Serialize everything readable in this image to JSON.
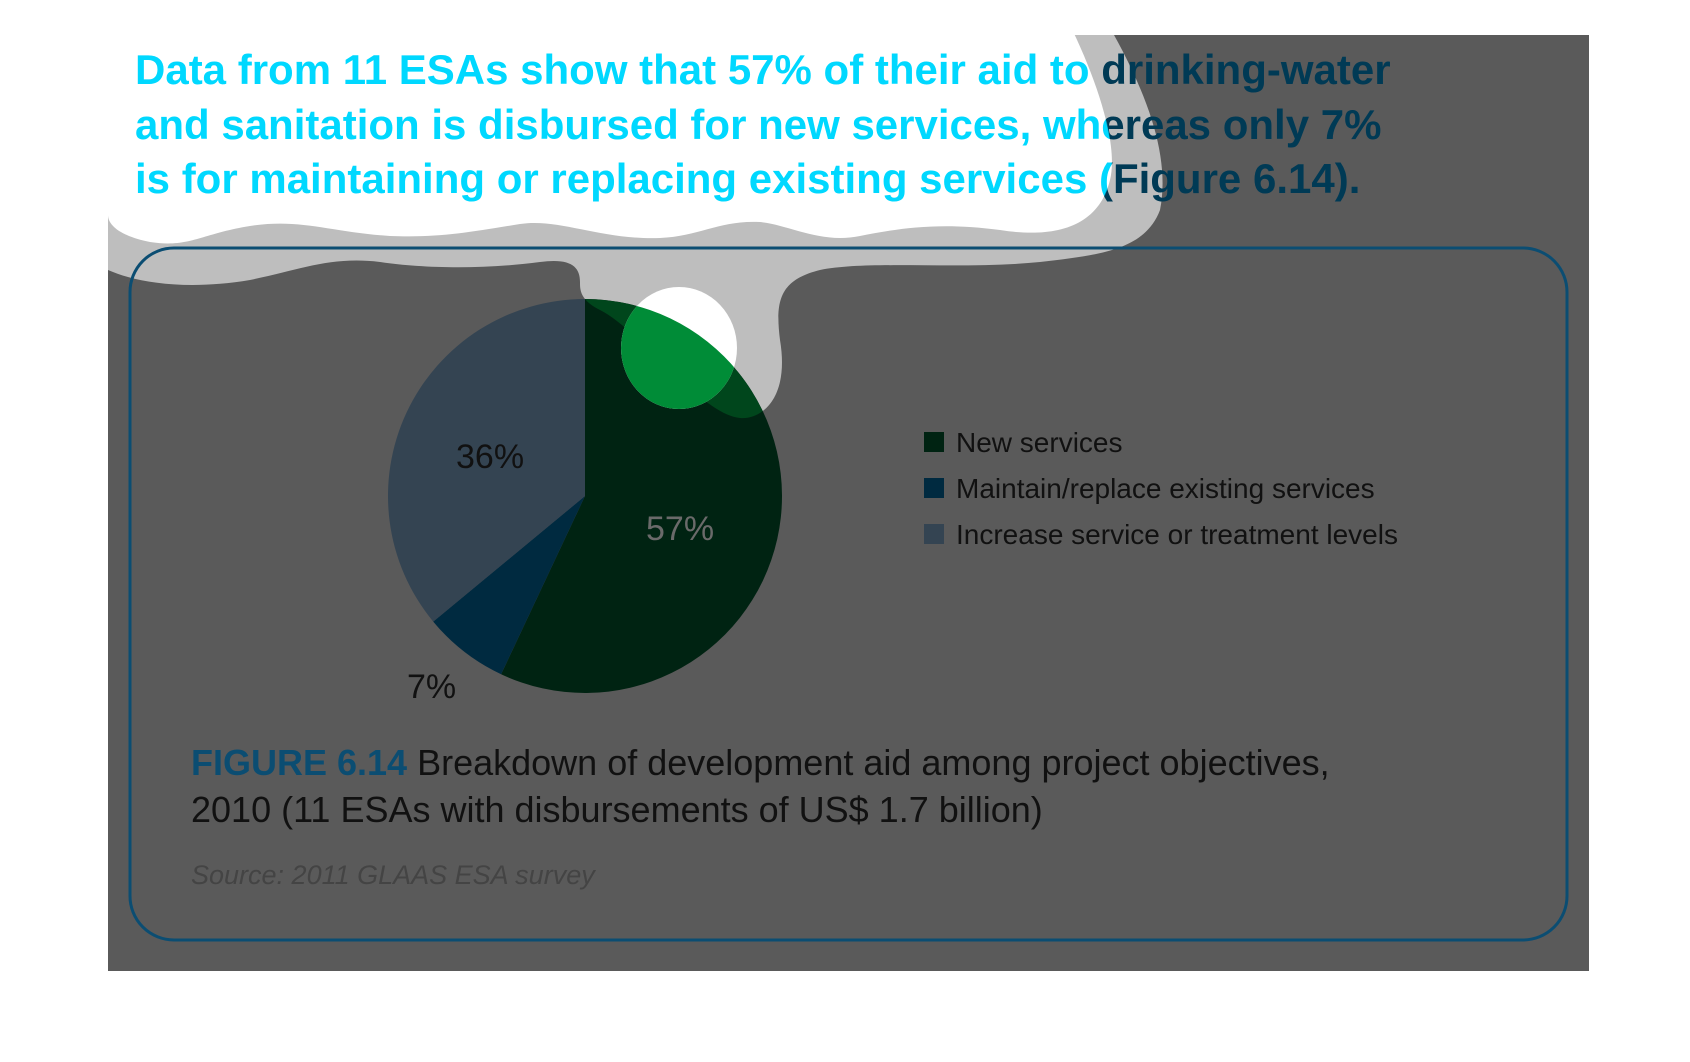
{
  "headline": {
    "lines": [
      "Data from 11 ESAs show that 57% of their aid to drinking-water",
      "and sanitation is disbursed for new services, whereas only 7%",
      "is for maintaining or replacing existing services (Figure 6.14)."
    ]
  },
  "colors": {
    "background": "#5a5a5a",
    "halo": "#bebebe",
    "headline_on_white": "#00d8ff",
    "headline_on_gray": "#003a55",
    "border": "#0b4d72",
    "figure_label": "#0b4d72"
  },
  "chart_data": {
    "type": "pie",
    "title": "FIGURE 6.14",
    "categories": [
      "New services",
      "Maintain/replace existing services",
      "Increase service or treatment levels"
    ],
    "values": [
      57,
      7,
      36
    ],
    "labels": [
      "57%",
      "7%",
      "36%"
    ],
    "colors": [
      "#002312",
      "#002a40",
      "#344452"
    ],
    "legend_placement": "right"
  },
  "caption": {
    "figure_label": "FIGURE 6.14",
    "line1": " Breakdown of development aid among project objectives,",
    "line2": "2010 (11 ESAs with disbursements of US$ 1.7 billion)",
    "source": "Source: 2011 GLAAS ESA survey"
  }
}
